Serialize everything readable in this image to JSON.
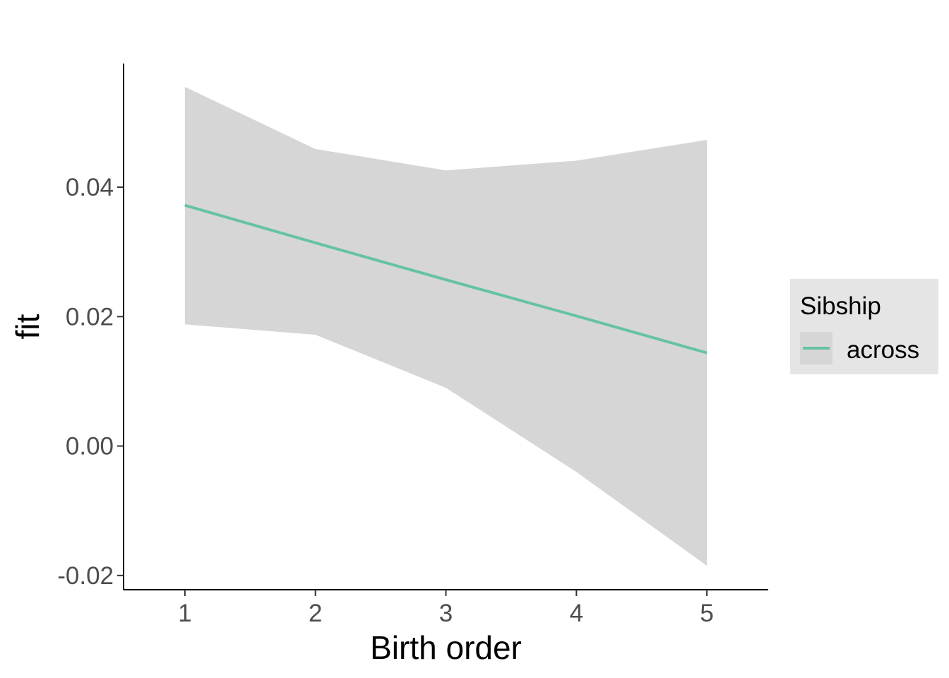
{
  "chart_data": {
    "type": "line",
    "xlabel": "Birth order",
    "ylabel": "fit",
    "x": [
      1,
      2,
      3,
      4,
      5
    ],
    "xlim": [
      0.53,
      5.47
    ],
    "ylim": [
      -0.0222,
      0.0591
    ],
    "x_ticks": [
      1,
      2,
      3,
      4,
      5
    ],
    "y_ticks": [
      -0.02,
      0.0,
      0.02,
      0.04
    ],
    "y_tick_labels": [
      "-0.02",
      "0.00",
      "0.02",
      "0.04"
    ],
    "series": [
      {
        "name": "across",
        "color": "#66c2a5",
        "values": [
          0.0372,
          0.0314,
          0.0257,
          0.0201,
          0.0144
        ],
        "lower": [
          0.0188,
          0.0172,
          0.009,
          -0.004,
          -0.0185
        ],
        "upper": [
          0.0555,
          0.0459,
          0.0426,
          0.0441,
          0.0473
        ]
      }
    ],
    "ribbon_color": "#d6d6d6",
    "grid": false,
    "legend": {
      "title": "Sibship",
      "position": "right",
      "background": "#e5e5e5"
    }
  }
}
